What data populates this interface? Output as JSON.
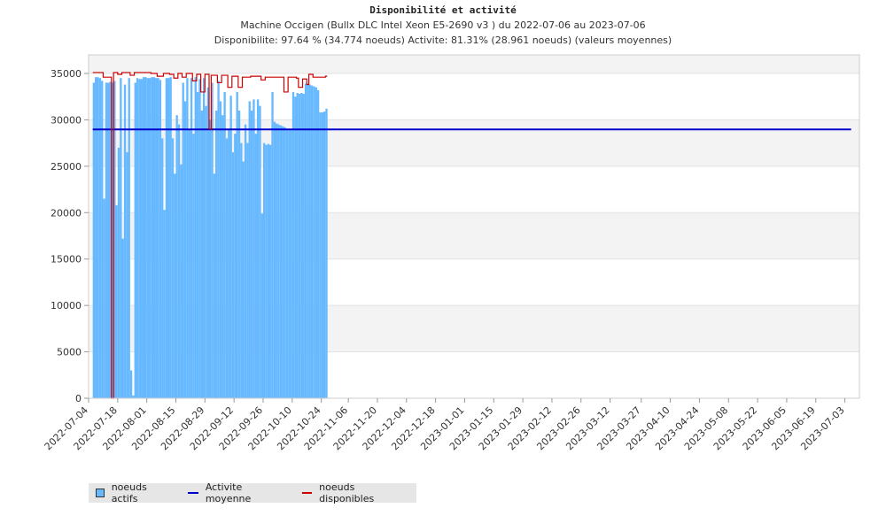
{
  "chart_data": {
    "type": "bar",
    "title": "Disponibilité et activité",
    "subtitle": "Machine Occigen (Bullx DLC  Intel Xeon E5-2690 v3 ) du 2022-07-06 au 2023-07-06",
    "subtitle2": "Disponibilite: 97.64 % (34.774 noeuds) Activite: 81.31% (28.961 noeuds) (valeurs moyennes)",
    "ylim": [
      0,
      37000
    ],
    "yticks": [
      0,
      5000,
      10000,
      15000,
      20000,
      25000,
      30000,
      35000
    ],
    "x_start": "2022-07-04",
    "x_end": "2023-07-10",
    "xticks": [
      "2022-07-04",
      "2022-07-18",
      "2022-08-01",
      "2022-08-15",
      "2022-08-29",
      "2022-09-12",
      "2022-09-26",
      "2022-10-10",
      "2022-10-24",
      "2022-11-06",
      "2022-11-20",
      "2022-12-04",
      "2022-12-18",
      "2023-01-01",
      "2023-01-15",
      "2023-01-29",
      "2023-02-12",
      "2023-02-26",
      "2023-03-12",
      "2023-03-27",
      "2023-04-10",
      "2023-04-24",
      "2023-05-08",
      "2023-05-22",
      "2023-06-05",
      "2023-06-19",
      "2023-07-03"
    ],
    "legend": [
      "noeuds actifs",
      "Activite moyenne",
      "noeuds disponibles"
    ],
    "colors": {
      "actifs": "#66b8ff",
      "moyenne": "#0000cc",
      "disponibles": "#cc0000"
    },
    "mean_activity": 28961,
    "series": [
      {
        "name": "noeuds actifs",
        "values": [
          [
            "2022-07-06",
            34000
          ],
          [
            "2022-07-07",
            34600
          ],
          [
            "2022-07-09",
            34500
          ],
          [
            "2022-07-10",
            34200
          ],
          [
            "2022-07-11",
            21500
          ],
          [
            "2022-07-12",
            34000
          ],
          [
            "2022-07-14",
            34100
          ],
          [
            "2022-07-15",
            34000
          ],
          [
            "2022-07-16",
            34200
          ],
          [
            "2022-07-17",
            20800
          ],
          [
            "2022-07-18",
            27000
          ],
          [
            "2022-07-19",
            34500
          ],
          [
            "2022-07-20",
            17200
          ],
          [
            "2022-07-21",
            33800
          ],
          [
            "2022-07-22",
            26500
          ],
          [
            "2022-07-23",
            34500
          ],
          [
            "2022-07-24",
            3000
          ],
          [
            "2022-07-25",
            300
          ],
          [
            "2022-07-26",
            34000
          ],
          [
            "2022-07-27",
            34500
          ],
          [
            "2022-07-28",
            34400
          ],
          [
            "2022-07-30",
            34600
          ],
          [
            "2022-08-01",
            34500
          ],
          [
            "2022-08-03",
            34600
          ],
          [
            "2022-08-05",
            34500
          ],
          [
            "2022-08-07",
            34300
          ],
          [
            "2022-08-08",
            28000
          ],
          [
            "2022-08-09",
            20300
          ],
          [
            "2022-08-10",
            34500
          ],
          [
            "2022-08-12",
            34600
          ],
          [
            "2022-08-13",
            28000
          ],
          [
            "2022-08-14",
            24200
          ],
          [
            "2022-08-15",
            30500
          ],
          [
            "2022-08-16",
            29500
          ],
          [
            "2022-08-17",
            25200
          ],
          [
            "2022-08-18",
            34000
          ],
          [
            "2022-08-19",
            32000
          ],
          [
            "2022-08-20",
            34500
          ],
          [
            "2022-08-21",
            29000
          ],
          [
            "2022-08-22",
            34500
          ],
          [
            "2022-08-23",
            28500
          ],
          [
            "2022-08-24",
            34600
          ],
          [
            "2022-08-25",
            33000
          ],
          [
            "2022-08-26",
            34400
          ],
          [
            "2022-08-27",
            31000
          ],
          [
            "2022-08-28",
            34500
          ],
          [
            "2022-08-29",
            31500
          ],
          [
            "2022-08-30",
            33500
          ],
          [
            "2022-08-31",
            30000
          ],
          [
            "2022-09-01",
            34000
          ],
          [
            "2022-09-02",
            24200
          ],
          [
            "2022-09-03",
            31000
          ],
          [
            "2022-09-04",
            34200
          ],
          [
            "2022-09-05",
            32000
          ],
          [
            "2022-09-06",
            30500
          ],
          [
            "2022-09-07",
            33000
          ],
          [
            "2022-09-08",
            28000
          ],
          [
            "2022-09-09",
            29000
          ],
          [
            "2022-09-10",
            32600
          ],
          [
            "2022-09-11",
            26500
          ],
          [
            "2022-09-12",
            28500
          ],
          [
            "2022-09-13",
            33000
          ],
          [
            "2022-09-14",
            31000
          ],
          [
            "2022-09-15",
            27500
          ],
          [
            "2022-09-16",
            25500
          ],
          [
            "2022-09-17",
            29500
          ],
          [
            "2022-09-18",
            27500
          ],
          [
            "2022-09-19",
            32000
          ],
          [
            "2022-09-20",
            31000
          ],
          [
            "2022-09-21",
            32200
          ],
          [
            "2022-09-22",
            28500
          ],
          [
            "2022-09-23",
            32200
          ],
          [
            "2022-09-24",
            31500
          ],
          [
            "2022-09-25",
            19900
          ],
          [
            "2022-09-26",
            27500
          ],
          [
            "2022-09-27",
            27300
          ],
          [
            "2022-09-28",
            27400
          ],
          [
            "2022-09-29",
            27300
          ],
          [
            "2022-09-30",
            33000
          ],
          [
            "2022-10-01",
            29800
          ],
          [
            "2022-10-02",
            29600
          ],
          [
            "2022-10-03",
            29500
          ],
          [
            "2022-10-04",
            29400
          ],
          [
            "2022-10-05",
            29300
          ],
          [
            "2022-10-06",
            29200
          ],
          [
            "2022-10-07",
            29000
          ],
          [
            "2022-10-08",
            29000
          ],
          [
            "2022-10-09",
            28900
          ],
          [
            "2022-10-10",
            33000
          ],
          [
            "2022-10-11",
            32500
          ],
          [
            "2022-10-12",
            32900
          ],
          [
            "2022-10-13",
            32800
          ],
          [
            "2022-10-14",
            32900
          ],
          [
            "2022-10-15",
            32800
          ],
          [
            "2022-10-16",
            33900
          ],
          [
            "2022-10-17",
            33900
          ],
          [
            "2022-10-18",
            33800
          ],
          [
            "2022-10-19",
            33700
          ],
          [
            "2022-10-20",
            33600
          ],
          [
            "2022-10-21",
            33500
          ],
          [
            "2022-10-22",
            33200
          ],
          [
            "2022-10-23",
            30800
          ],
          [
            "2022-10-24",
            30800
          ],
          [
            "2022-10-25",
            30900
          ],
          [
            "2022-10-26",
            31200
          ]
        ]
      },
      {
        "name": "noeuds disponibles",
        "values": [
          [
            "2022-07-06",
            35100
          ],
          [
            "2022-07-10",
            35100
          ],
          [
            "2022-07-11",
            34600
          ],
          [
            "2022-07-14",
            34600
          ],
          [
            "2022-07-15",
            0
          ],
          [
            "2022-07-16",
            35100
          ],
          [
            "2022-07-18",
            34900
          ],
          [
            "2022-07-20",
            35100
          ],
          [
            "2022-07-24",
            34800
          ],
          [
            "2022-07-26",
            35100
          ],
          [
            "2022-08-03",
            35000
          ],
          [
            "2022-08-06",
            34700
          ],
          [
            "2022-08-09",
            35000
          ],
          [
            "2022-08-12",
            34900
          ],
          [
            "2022-08-14",
            34500
          ],
          [
            "2022-08-16",
            35000
          ],
          [
            "2022-08-18",
            34600
          ],
          [
            "2022-08-20",
            35000
          ],
          [
            "2022-08-23",
            34200
          ],
          [
            "2022-08-25",
            34900
          ],
          [
            "2022-08-27",
            33000
          ],
          [
            "2022-08-29",
            34900
          ],
          [
            "2022-08-31",
            29000
          ],
          [
            "2022-09-01",
            34800
          ],
          [
            "2022-09-04",
            34000
          ],
          [
            "2022-09-06",
            34800
          ],
          [
            "2022-09-09",
            33500
          ],
          [
            "2022-09-11",
            34700
          ],
          [
            "2022-09-14",
            33500
          ],
          [
            "2022-09-16",
            34600
          ],
          [
            "2022-09-20",
            34700
          ],
          [
            "2022-09-25",
            34300
          ],
          [
            "2022-09-27",
            34600
          ],
          [
            "2022-10-04",
            34600
          ],
          [
            "2022-10-06",
            33000
          ],
          [
            "2022-10-08",
            34600
          ],
          [
            "2022-10-12",
            34500
          ],
          [
            "2022-10-13",
            33500
          ],
          [
            "2022-10-15",
            34400
          ],
          [
            "2022-10-17",
            33800
          ],
          [
            "2022-10-18",
            34900
          ],
          [
            "2022-10-20",
            34600
          ],
          [
            "2022-10-26",
            34700
          ]
        ]
      }
    ]
  }
}
